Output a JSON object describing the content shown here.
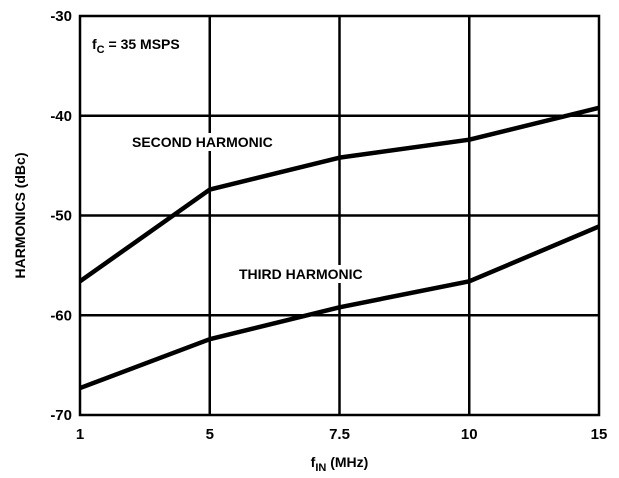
{
  "chart_data": {
    "type": "line",
    "x_categories": [
      "1",
      "5",
      "7.5",
      "10",
      "15"
    ],
    "x_scale": "categorical, evenly spaced",
    "ylim": [
      -70,
      -30
    ],
    "yticks": [
      "-30",
      "-40",
      "-50",
      "-60",
      "-70"
    ],
    "ytick_values": [
      -30,
      -40,
      -50,
      -60,
      -70
    ],
    "ylabel": "HARMONICS (dBc)",
    "xlabel": {
      "main": "f",
      "sub": "IN",
      "rest": " (MHz)"
    },
    "grid": true,
    "annotation": {
      "main": "f",
      "sub": "C",
      "rest": " = 35 MSPS"
    },
    "series": [
      {
        "name": "SECOND HARMONIC",
        "values": [
          -56.6,
          -47.4,
          -44.2,
          -42.4,
          -39.2
        ]
      },
      {
        "name": "THIRD HARMONIC",
        "values": [
          -67.3,
          -62.4,
          -59.2,
          -56.6,
          -51.1
        ]
      }
    ],
    "line_color": "#000000"
  }
}
